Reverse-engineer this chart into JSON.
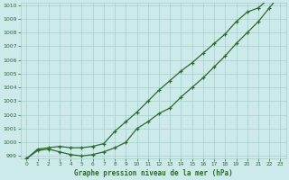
{
  "x": [
    0,
    1,
    2,
    3,
    4,
    5,
    6,
    7,
    8,
    9,
    10,
    11,
    12,
    13,
    14,
    15,
    16,
    17,
    18,
    19,
    20,
    21,
    22,
    23
  ],
  "line_upper": [
    998.8,
    999.5,
    999.6,
    999.7,
    999.6,
    999.6,
    999.7,
    999.9,
    1000.8,
    1001.5,
    1002.2,
    1003.0,
    1003.8,
    1004.5,
    1005.2,
    1005.8,
    1006.5,
    1007.2,
    1007.9,
    1008.8,
    1009.5,
    1009.8,
    1010.5,
    1010.8
  ],
  "line_lower": [
    998.8,
    999.4,
    999.5,
    999.3,
    999.1,
    999.0,
    999.1,
    999.3,
    999.6,
    1000.0,
    1001.0,
    1001.5,
    1002.1,
    1002.5,
    1003.3,
    1004.0,
    1004.7,
    1005.5,
    1006.3,
    1007.2,
    1008.0,
    1008.8,
    1009.8,
    1010.8
  ],
  "ylim": [
    999.0,
    1010.0
  ],
  "xlim": [
    0,
    23
  ],
  "yticks": [
    999,
    1000,
    1001,
    1002,
    1003,
    1004,
    1005,
    1006,
    1007,
    1008,
    1009,
    1010
  ],
  "xticks": [
    0,
    1,
    2,
    3,
    4,
    5,
    6,
    7,
    8,
    9,
    10,
    11,
    12,
    13,
    14,
    15,
    16,
    17,
    18,
    19,
    20,
    21,
    22,
    23
  ],
  "line_color": "#2d6a2d",
  "bg_color": "#cceaea",
  "grid_color": "#a8cccc",
  "xlabel": "Graphe pression niveau de la mer (hPa)"
}
